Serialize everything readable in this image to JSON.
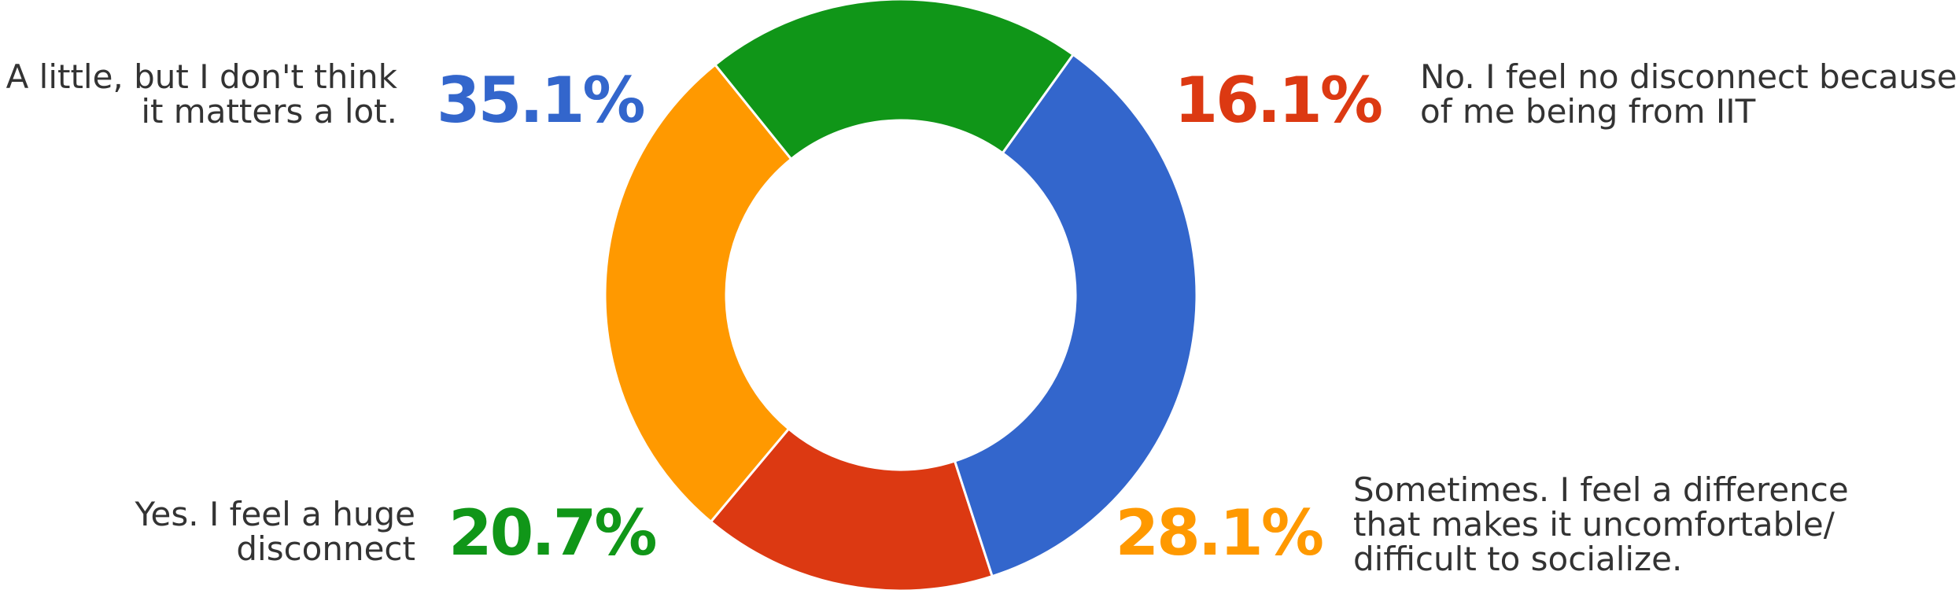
{
  "chart_data": {
    "type": "pie",
    "donut": true,
    "title": "",
    "slices": [
      {
        "label": "No. I feel no disconnect because of me being from IIT",
        "label_lines": [
          "No. I feel no disconnect because",
          "of me being from IIT"
        ],
        "value": 16.1,
        "value_text": "16.1%",
        "color": "#dc3912"
      },
      {
        "label": "Sometimes. I feel a difference that makes it uncomfortable/ difficult to socialize.",
        "label_lines": [
          "Sometimes. I feel a difference",
          "that makes it uncomfortable/",
          "difficult to socialize."
        ],
        "value": 28.1,
        "value_text": "28.1%",
        "color": "#ff9900"
      },
      {
        "label": "Yes. I feel a huge disconnect",
        "label_lines": [
          "Yes. I feel a huge",
          "disconnect"
        ],
        "value": 20.7,
        "value_text": "20.7%",
        "color": "#109618"
      },
      {
        "label": "A little, but I don't think it matters a lot.",
        "label_lines": [
          "A little, but I don't think",
          "it matters a lot."
        ],
        "value": 35.1,
        "value_text": "35.1%",
        "color": "#3366cc"
      }
    ]
  }
}
